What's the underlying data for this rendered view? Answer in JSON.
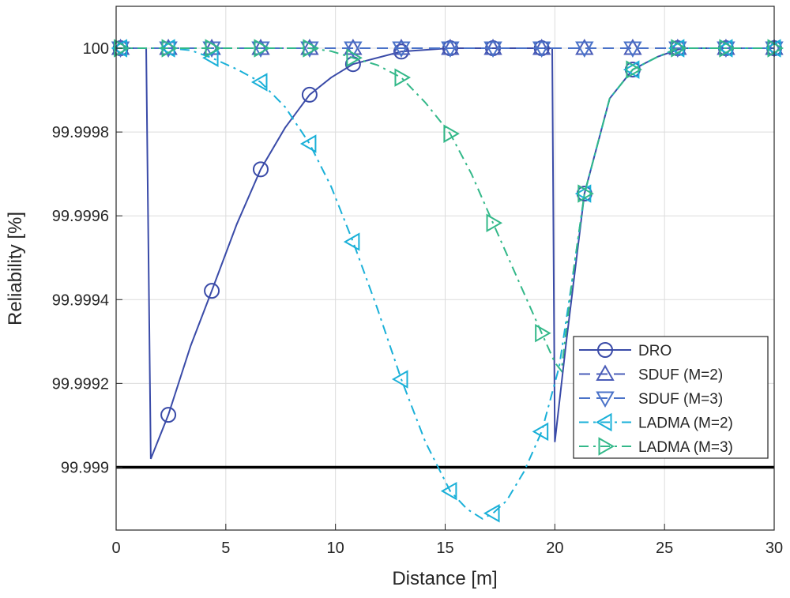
{
  "chart_data": {
    "type": "line",
    "xlabel": "Distance [m]",
    "ylabel": "Reliability [%]",
    "xlim": [
      0,
      30
    ],
    "ylim": [
      99.99885,
      100.0001
    ],
    "xticks": [
      0,
      5,
      10,
      15,
      20,
      25,
      30
    ],
    "xtick_labels": [
      "0",
      "5",
      "10",
      "15",
      "20",
      "25",
      "30"
    ],
    "yticks": [
      99.999,
      99.9992,
      99.9994,
      99.9996,
      99.9998,
      100
    ],
    "ytick_labels": [
      "99.999",
      "99.9992",
      "99.9994",
      "99.9996",
      "99.9998",
      "100"
    ],
    "grid": true,
    "legend_position": "lower-right",
    "threshold": {
      "y": 99.999,
      "color": "#000000"
    },
    "series": [
      {
        "name": "DRO",
        "color": "#3a4ba8",
        "dash": "solid",
        "marker": "circle",
        "points": [
          [
            0,
            100
          ],
          [
            1.37,
            100
          ],
          [
            1.58,
            99.99902
          ],
          [
            2.38,
            99.999125
          ],
          [
            3.4,
            99.99929
          ],
          [
            4.36,
            99.999421
          ],
          [
            5.5,
            99.99958
          ],
          [
            6.59,
            99.999711
          ],
          [
            7.7,
            99.99981
          ],
          [
            8.82,
            99.999889
          ],
          [
            9.8,
            99.99993
          ],
          [
            10.8,
            99.999962
          ],
          [
            13,
            99.999992
          ],
          [
            15.2,
            100
          ],
          [
            19.88,
            100
          ],
          [
            20.0,
            99.99906
          ],
          [
            20.5,
            99.99929
          ],
          [
            21.35,
            99.999653
          ],
          [
            22.5,
            99.99988
          ],
          [
            23.55,
            99.999949
          ],
          [
            24.7,
            99.99998
          ],
          [
            25.8,
            100
          ],
          [
            30,
            100
          ]
        ],
        "markers": [
          [
            0.2,
            100
          ],
          [
            2.38,
            99.999125
          ],
          [
            4.36,
            99.999421
          ],
          [
            6.59,
            99.999711
          ],
          [
            8.82,
            99.999889
          ],
          [
            10.8,
            99.999962
          ],
          [
            13,
            99.999992
          ],
          [
            15.23,
            100
          ],
          [
            17.18,
            100
          ],
          [
            19.4,
            100
          ],
          [
            21.35,
            99.999653
          ],
          [
            23.55,
            99.999949
          ],
          [
            25.6,
            100
          ],
          [
            27.8,
            100
          ],
          [
            30,
            100
          ]
        ]
      },
      {
        "name": "SDUF (M=2)",
        "color": "#4a5cb8",
        "dash": "dashed",
        "marker": "triangle-up",
        "points": [
          [
            0,
            100
          ],
          [
            30,
            100
          ]
        ],
        "markers": [
          [
            0.2,
            100
          ],
          [
            2.38,
            100
          ],
          [
            4.36,
            100
          ],
          [
            6.59,
            100
          ],
          [
            8.82,
            100
          ],
          [
            10.8,
            100
          ],
          [
            13,
            100
          ],
          [
            15.23,
            100
          ],
          [
            17.18,
            100
          ],
          [
            19.4,
            100
          ],
          [
            21.35,
            100
          ],
          [
            23.55,
            100
          ],
          [
            25.6,
            100
          ],
          [
            27.8,
            100
          ],
          [
            30,
            100
          ]
        ]
      },
      {
        "name": "SDUF (M=3)",
        "color": "#4a72c8",
        "dash": "dashed",
        "marker": "triangle-down",
        "points": [
          [
            0,
            100
          ],
          [
            30,
            100
          ]
        ],
        "markers": [
          [
            0.2,
            100
          ],
          [
            2.38,
            100
          ],
          [
            4.36,
            100
          ],
          [
            6.59,
            100
          ],
          [
            8.82,
            100
          ],
          [
            10.8,
            100
          ],
          [
            13,
            100
          ],
          [
            15.23,
            100
          ],
          [
            17.18,
            100
          ],
          [
            19.4,
            100
          ],
          [
            21.35,
            100
          ],
          [
            23.55,
            100
          ],
          [
            25.6,
            100
          ],
          [
            27.8,
            100
          ],
          [
            30,
            100
          ]
        ]
      },
      {
        "name": "LADMA (M=2)",
        "color": "#1ab0d8",
        "dash": "dashdot",
        "marker": "triangle-left",
        "points": [
          [
            0,
            100
          ],
          [
            2.4,
            100
          ],
          [
            3.4,
            99.999995
          ],
          [
            4.36,
            99.999977
          ],
          [
            5.5,
            99.99995
          ],
          [
            6.59,
            99.999919
          ],
          [
            7.7,
            99.99986
          ],
          [
            8.82,
            99.999772
          ],
          [
            9.8,
            99.99967
          ],
          [
            10.8,
            99.999538
          ],
          [
            11.9,
            99.99938
          ],
          [
            13,
            99.99921
          ],
          [
            14.1,
            99.99906
          ],
          [
            15.23,
            99.998943
          ],
          [
            16.0,
            99.9989
          ],
          [
            16.7,
            99.998877
          ],
          [
            17.18,
            99.99889
          ],
          [
            17.8,
            99.99892
          ],
          [
            18.6,
            99.99899
          ],
          [
            19.4,
            99.999085
          ],
          [
            20.2,
            99.99924
          ],
          [
            20.8,
            99.99945
          ],
          [
            21.35,
            99.999653
          ],
          [
            22.5,
            99.99988
          ],
          [
            23.55,
            99.999949
          ],
          [
            24.7,
            99.99998
          ],
          [
            25.6,
            100
          ],
          [
            30,
            100
          ]
        ],
        "markers": [
          [
            0.2,
            100
          ],
          [
            2.38,
            100
          ],
          [
            4.36,
            99.999977
          ],
          [
            6.59,
            99.999919
          ],
          [
            8.82,
            99.999772
          ],
          [
            10.8,
            99.999538
          ],
          [
            13,
            99.99921
          ],
          [
            15.23,
            99.998943
          ],
          [
            17.18,
            99.99889
          ],
          [
            19.4,
            99.999085
          ],
          [
            21.35,
            99.999653
          ],
          [
            23.55,
            99.999949
          ],
          [
            25.6,
            100
          ],
          [
            27.8,
            100
          ],
          [
            30,
            100
          ]
        ]
      },
      {
        "name": "LADMA (M=3)",
        "color": "#33b889",
        "dash": "dashdot",
        "marker": "triangle-right",
        "points": [
          [
            0,
            100
          ],
          [
            8.82,
            100
          ],
          [
            9.8,
            99.999993
          ],
          [
            10.8,
            99.999977
          ],
          [
            11.9,
            99.99996
          ],
          [
            13,
            99.99993
          ],
          [
            14.1,
            99.99987
          ],
          [
            15.23,
            99.999796
          ],
          [
            16.2,
            99.9997
          ],
          [
            17.18,
            99.999583
          ],
          [
            18.3,
            99.99945
          ],
          [
            19.4,
            99.99932
          ],
          [
            20.0,
            99.99925
          ],
          [
            20.3,
            99.99923
          ],
          [
            20.8,
            99.99945
          ],
          [
            21.35,
            99.999653
          ],
          [
            22.5,
            99.99988
          ],
          [
            23.55,
            99.999949
          ],
          [
            24.7,
            99.99998
          ],
          [
            25.6,
            100
          ],
          [
            30,
            100
          ]
        ],
        "markers": [
          [
            0.2,
            100
          ],
          [
            2.38,
            100
          ],
          [
            4.36,
            100
          ],
          [
            6.59,
            100
          ],
          [
            8.82,
            100
          ],
          [
            10.8,
            99.999977
          ],
          [
            13,
            99.99993
          ],
          [
            15.23,
            99.999796
          ],
          [
            17.18,
            99.999583
          ],
          [
            19.4,
            99.99932
          ],
          [
            21.35,
            99.999653
          ],
          [
            23.55,
            99.999949
          ],
          [
            25.6,
            100
          ],
          [
            27.8,
            100
          ],
          [
            30,
            100
          ]
        ]
      }
    ]
  }
}
